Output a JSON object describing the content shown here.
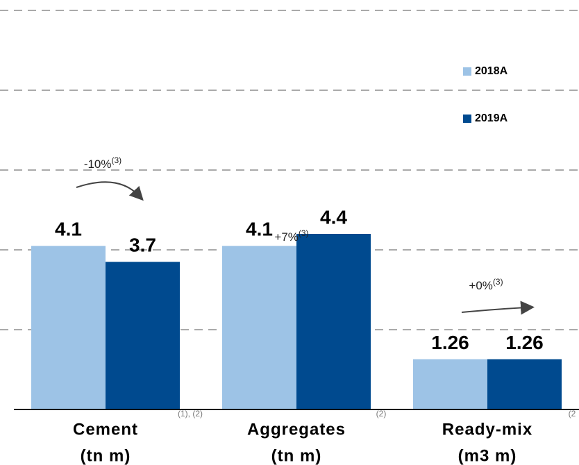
{
  "chart_data": {
    "type": "bar",
    "categories": [
      [
        "Cement",
        "(tn m)"
      ],
      [
        "Aggregates",
        "(tn m)"
      ],
      [
        "Ready-mix",
        "(m3 m)"
      ]
    ],
    "category_notes": [
      "(1), (2)",
      "(2)",
      "(2"
    ],
    "series": [
      {
        "name": "2018A",
        "color": "#9dc3e6",
        "values": [
          4.1,
          4.1,
          1.26
        ]
      },
      {
        "name": "2019A",
        "color": "#004a8f",
        "values": [
          3.7,
          4.4,
          1.26
        ]
      }
    ],
    "annotations": [
      {
        "text": "-10%",
        "sup": "(3)"
      },
      {
        "text": "+7%",
        "sup": "(3)"
      },
      {
        "text": "+0%",
        "sup": "(3)"
      }
    ],
    "ylim": [
      0,
      10
    ],
    "yticks": [
      0,
      2,
      4,
      6,
      8,
      10
    ],
    "grid": true,
    "legend": "upper right"
  }
}
